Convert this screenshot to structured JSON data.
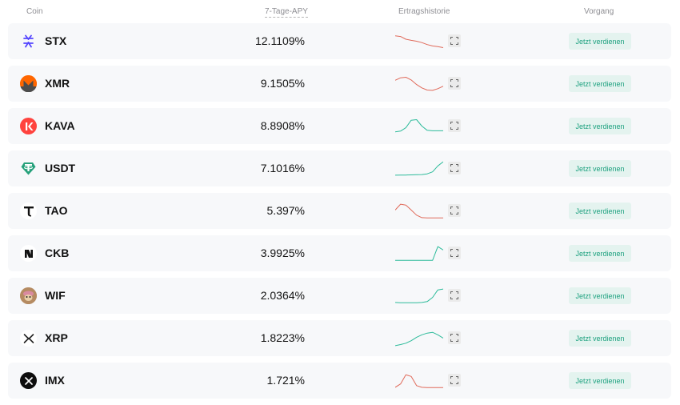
{
  "header": {
    "coin": "Coin",
    "apy": "7-Tage-APY",
    "history": "Ertragshistorie",
    "action": "Vorgang"
  },
  "colors": {
    "down": "#e06a5a",
    "up": "#2dbb9a",
    "accent": "#1da17f"
  },
  "rows": [
    {
      "symbol": "STX",
      "apy": "12.1109%",
      "icon": "stx-icon",
      "trend": "down",
      "points": [
        0.82,
        0.78,
        0.62,
        0.55,
        0.5,
        0.42,
        0.3,
        0.22,
        0.18,
        0.12
      ]
    },
    {
      "symbol": "XMR",
      "apy": "9.1505%",
      "icon": "xmr-icon",
      "trend": "down",
      "points": [
        0.7,
        0.85,
        0.88,
        0.72,
        0.45,
        0.25,
        0.12,
        0.1,
        0.2,
        0.35
      ]
    },
    {
      "symbol": "KAVA",
      "apy": "8.8908%",
      "icon": "kava-icon",
      "trend": "up",
      "points": [
        0.15,
        0.2,
        0.4,
        0.85,
        0.88,
        0.5,
        0.25,
        0.22,
        0.22,
        0.22
      ]
    },
    {
      "symbol": "USDT",
      "apy": "7.1016%",
      "icon": "usdt-icon",
      "trend": "up",
      "points": [
        0.1,
        0.11,
        0.11,
        0.12,
        0.13,
        0.14,
        0.18,
        0.3,
        0.65,
        0.9
      ]
    },
    {
      "symbol": "TAO",
      "apy": "5.397%",
      "icon": "tao-icon",
      "trend": "down",
      "points": [
        0.55,
        0.9,
        0.85,
        0.55,
        0.25,
        0.1,
        0.08,
        0.08,
        0.08,
        0.08
      ]
    },
    {
      "symbol": "CKB",
      "apy": "3.9925%",
      "icon": "ckb-icon",
      "trend": "up",
      "points": [
        0.08,
        0.08,
        0.08,
        0.08,
        0.08,
        0.08,
        0.08,
        0.08,
        0.9,
        0.7
      ]
    },
    {
      "symbol": "WIF",
      "apy": "2.0364%",
      "icon": "wif-icon",
      "trend": "up",
      "points": [
        0.1,
        0.08,
        0.08,
        0.08,
        0.08,
        0.1,
        0.15,
        0.4,
        0.85,
        0.9
      ]
    },
    {
      "symbol": "XRP",
      "apy": "1.8223%",
      "icon": "xrp-icon",
      "trend": "up",
      "points": [
        0.05,
        0.12,
        0.2,
        0.35,
        0.55,
        0.7,
        0.8,
        0.85,
        0.7,
        0.5
      ]
    },
    {
      "symbol": "IMX",
      "apy": "1.721%",
      "icon": "imx-icon",
      "trend": "down",
      "points": [
        0.1,
        0.3,
        0.85,
        0.75,
        0.2,
        0.1,
        0.08,
        0.08,
        0.08,
        0.08
      ]
    }
  ],
  "button_label": "Jetzt verdienen"
}
